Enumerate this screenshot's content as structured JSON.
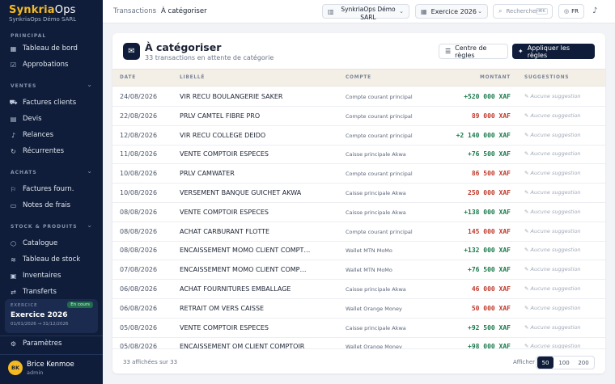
{
  "brand": {
    "name_part1": "Synkria",
    "name_part2": "Ops",
    "company": "SynkriaOps Démo SARL"
  },
  "sidebar": {
    "sections": [
      {
        "label": "PRINCIPAL"
      },
      {
        "label": "VENTES"
      },
      {
        "label": "ACHATS"
      },
      {
        "label": "STOCK & PRODUITS"
      }
    ],
    "items": [
      {
        "label": "Tableau de bord",
        "icon": "dashboard-icon"
      },
      {
        "label": "Approbations",
        "icon": "check-icon"
      },
      {
        "label": "Factures clients",
        "icon": "cart-icon"
      },
      {
        "label": "Devis",
        "icon": "document-icon"
      },
      {
        "label": "Relances",
        "icon": "bell-icon"
      },
      {
        "label": "Récurrentes",
        "icon": "repeat-icon"
      },
      {
        "label": "Factures fourn.",
        "icon": "truck-icon"
      },
      {
        "label": "Notes de frais",
        "icon": "receipt-icon"
      },
      {
        "label": "Catalogue",
        "icon": "box-icon"
      },
      {
        "label": "Tableau de stock",
        "icon": "layers-icon"
      },
      {
        "label": "Inventaires",
        "icon": "clipboard-icon"
      },
      {
        "label": "Transferts",
        "icon": "transfer-icon"
      }
    ],
    "exercise": {
      "label": "EXERCICE",
      "badge": "En cours",
      "name": "Exercice 2026",
      "dates": "01/01/2026 → 31/12/2026"
    },
    "settings": "Paramètres",
    "user": {
      "initials": "BK",
      "name": "Brice Kenmoe",
      "role": "admin"
    }
  },
  "topbar": {
    "breadcrumb": [
      "Transactions",
      "À catégoriser"
    ],
    "company": "SynkriaOps Démo SARL",
    "year": "Exercice 2026",
    "search_placeholder": "Rechercher",
    "search_shortcut": "⌘K",
    "lang": "FR"
  },
  "page": {
    "title": "À catégoriser",
    "subtitle": "33 transactions en attente de catégorie",
    "btn_rules": "Centre de règles",
    "btn_apply": "Appliquer les règles"
  },
  "table": {
    "headers": {
      "date": "DATE",
      "label": "LIBELLÉ",
      "account": "COMPTE",
      "amount": "MONTANT",
      "suggestions": "SUGGESTIONS"
    },
    "rows": [
      {
        "date": "24/08/2026",
        "label": "VIR RECU BOULANGERIE SAKER",
        "account": "Compte courant principal",
        "amount": "+520 000 XAF",
        "sign": "pos",
        "suggestion": "Aucune suggestion"
      },
      {
        "date": "22/08/2026",
        "label": "PRLV CAMTEL FIBRE PRO",
        "account": "Compte courant principal",
        "amount": "89 000 XAF",
        "sign": "neg",
        "suggestion": "Aucune suggestion"
      },
      {
        "date": "12/08/2026",
        "label": "VIR RECU COLLEGE DEIDO",
        "account": "Compte courant principal",
        "amount": "+2 140 000 XAF",
        "sign": "pos",
        "suggestion": "Aucune suggestion"
      },
      {
        "date": "11/08/2026",
        "label": "VENTE COMPTOIR ESPECES",
        "account": "Caisse principale Akwa",
        "amount": "+76 500 XAF",
        "sign": "pos",
        "suggestion": "Aucune suggestion"
      },
      {
        "date": "10/08/2026",
        "label": "PRLV CAMWATER",
        "account": "Compte courant principal",
        "amount": "86 500 XAF",
        "sign": "neg",
        "suggestion": "Aucune suggestion"
      },
      {
        "date": "10/08/2026",
        "label": "VERSEMENT BANQUE GUICHET AKWA",
        "account": "Caisse principale Akwa",
        "amount": "250 000 XAF",
        "sign": "neg",
        "suggestion": "Aucune suggestion"
      },
      {
        "date": "08/08/2026",
        "label": "VENTE COMPTOIR ESPECES",
        "account": "Caisse principale Akwa",
        "amount": "+138 000 XAF",
        "sign": "pos",
        "suggestion": "Aucune suggestion"
      },
      {
        "date": "08/08/2026",
        "label": "ACHAT CARBURANT FLOTTE",
        "account": "Compte courant principal",
        "amount": "145 000 XAF",
        "sign": "neg",
        "suggestion": "Aucune suggestion"
      },
      {
        "date": "08/08/2026",
        "label": "ENCAISSEMENT MOMO CLIENT COMPT…",
        "account": "Wallet MTN MoMo",
        "amount": "+132 000 XAF",
        "sign": "pos",
        "suggestion": "Aucune suggestion"
      },
      {
        "date": "07/08/2026",
        "label": "ENCAISSEMENT MOMO CLIENT COMP…",
        "account": "Wallet MTN MoMo",
        "amount": "+76 500 XAF",
        "sign": "pos",
        "suggestion": "Aucune suggestion"
      },
      {
        "date": "06/08/2026",
        "label": "ACHAT FOURNITURES EMBALLAGE",
        "account": "Caisse principale Akwa",
        "amount": "46 000 XAF",
        "sign": "neg",
        "suggestion": "Aucune suggestion"
      },
      {
        "date": "06/08/2026",
        "label": "RETRAIT OM VERS CAISSE",
        "account": "Wallet Orange Money",
        "amount": "50 000 XAF",
        "sign": "neg",
        "suggestion": "Aucune suggestion"
      },
      {
        "date": "05/08/2026",
        "label": "VENTE COMPTOIR ESPECES",
        "account": "Caisse principale Akwa",
        "amount": "+92 500 XAF",
        "sign": "pos",
        "suggestion": "Aucune suggestion"
      },
      {
        "date": "05/08/2026",
        "label": "ENCAISSEMENT OM CLIENT COMPTOIR",
        "account": "Wallet Orange Money",
        "amount": "+98 000 XAF",
        "sign": "pos",
        "suggestion": "Aucune suggestion"
      }
    ]
  },
  "footer": {
    "count": "33 affichées sur 33",
    "show_label": "Afficher",
    "page_sizes": [
      "50",
      "100",
      "200"
    ],
    "selected_size": "50"
  },
  "colors": {
    "sidebar_bg": "#0f1d3a",
    "accent": "#f5b921",
    "positive": "#1a7a4c",
    "negative": "#c0392b"
  }
}
